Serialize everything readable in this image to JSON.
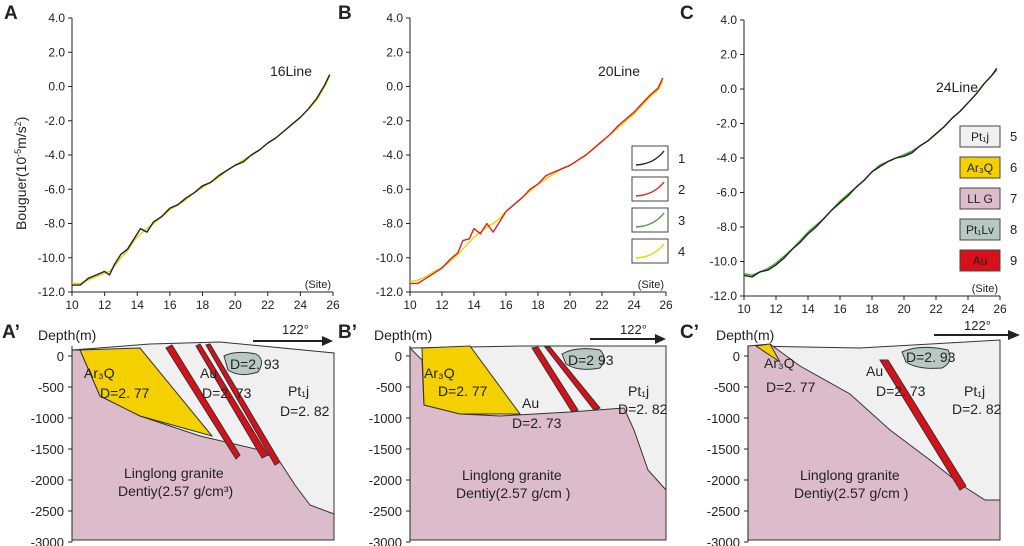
{
  "panels": {
    "A": "A",
    "B": "B",
    "C": "C",
    "A2": "A’",
    "B2": "B’",
    "C2": "C’"
  },
  "ylabel": "Bouguer(10",
  "ylabel_sup1": "-5",
  "ylabel_mid": "m/s",
  "ylabel_sup2": "2",
  "ylabel_end": ")",
  "site_label": "(Site)",
  "depth_label": "Depth(m)",
  "direction": "122°",
  "colors": {
    "black": "#222222",
    "red": "#e0201c",
    "green": "#3aa82a",
    "yellow": "#e8d400",
    "pt1j": "#f0f0f0",
    "ar3q": "#f5d000",
    "llg": "#dcbccb",
    "pt1lv": "#b8c9c4",
    "au": "#d8101a"
  },
  "chart_data": [
    {
      "type": "line",
      "panel": "A",
      "title": "16Line",
      "xlabel": "(Site)",
      "ylabel": "Bouguer(10-5m/s2)",
      "xlim": [
        10,
        26
      ],
      "ylim": [
        -12,
        4
      ],
      "x_ticks": [
        "10",
        "12",
        "14",
        "16",
        "18",
        "20",
        "22",
        "24",
        "26"
      ],
      "y_ticks": [
        "4.0",
        "2.0",
        "0.0",
        "-2.0",
        "-4.0",
        "-6.0",
        "-8.0",
        "-10.0",
        "-12.0"
      ],
      "x": [
        10,
        10.5,
        11,
        11.5,
        12,
        12.3,
        12.6,
        13,
        13.4,
        13.8,
        14.2,
        14.6,
        15,
        15.5,
        16,
        16.5,
        17,
        17.5,
        18,
        18.5,
        19,
        19.5,
        20,
        20.5,
        21,
        21.5,
        22,
        22.5,
        23,
        23.5,
        24,
        24.5,
        25,
        25.5,
        25.8
      ],
      "series": [
        {
          "name": "1",
          "color": "#222222",
          "values": [
            -11.6,
            -11.6,
            -11.2,
            -11.0,
            -10.8,
            -11.0,
            -10.4,
            -9.8,
            -9.5,
            -8.9,
            -8.3,
            -8.5,
            -7.9,
            -7.6,
            -7.1,
            -6.9,
            -6.5,
            -6.2,
            -5.8,
            -5.6,
            -5.2,
            -4.9,
            -4.6,
            -4.4,
            -4.0,
            -3.7,
            -3.3,
            -3.0,
            -2.6,
            -2.2,
            -1.8,
            -1.3,
            -0.7,
            0.1,
            0.7
          ]
        },
        {
          "name": "4",
          "color": "#e8d400",
          "values": [
            -11.5,
            -11.5,
            -11.3,
            -11.1,
            -10.9,
            -10.8,
            -10.5,
            -10.0,
            -9.6,
            -9.0,
            -8.6,
            -8.3,
            -8.0,
            -7.6,
            -7.2,
            -6.9,
            -6.6,
            -6.2,
            -5.9,
            -5.6,
            -5.3,
            -4.9,
            -4.6,
            -4.3,
            -4.0,
            -3.7,
            -3.3,
            -3.0,
            -2.6,
            -2.2,
            -1.8,
            -1.3,
            -0.8,
            0.0,
            0.6
          ]
        }
      ]
    },
    {
      "type": "line",
      "panel": "B",
      "title": "20Line",
      "xlabel": "(Site)",
      "ylabel": "",
      "xlim": [
        10,
        26
      ],
      "ylim": [
        -12,
        4
      ],
      "x_ticks": [
        "10",
        "12",
        "14",
        "16",
        "18",
        "20",
        "22",
        "24",
        "26"
      ],
      "y_ticks": [
        "4.0",
        "2.0",
        "0.0",
        "-2.0",
        "-4.0",
        "-6.0",
        "-8.0",
        "-10.0",
        "-12.0"
      ],
      "x": [
        10,
        10.5,
        11,
        11.5,
        12,
        12.5,
        13,
        13.3,
        13.7,
        14,
        14.4,
        14.8,
        15.2,
        15.6,
        16,
        16.5,
        17,
        17.5,
        18,
        18.5,
        19,
        19.5,
        20,
        20.5,
        21,
        21.5,
        22,
        22.5,
        23,
        23.5,
        24,
        24.5,
        25,
        25.5,
        25.8
      ],
      "series": [
        {
          "name": "2",
          "color": "#e0201c",
          "values": [
            -11.5,
            -11.5,
            -11.2,
            -10.9,
            -10.6,
            -10.1,
            -9.7,
            -9.0,
            -8.9,
            -8.3,
            -8.6,
            -8.0,
            -8.5,
            -7.9,
            -7.3,
            -6.9,
            -6.5,
            -6.0,
            -5.7,
            -5.2,
            -5.0,
            -4.8,
            -4.6,
            -4.3,
            -4.0,
            -3.6,
            -3.2,
            -2.8,
            -2.3,
            -1.9,
            -1.5,
            -1.0,
            -0.5,
            -0.1,
            0.5
          ]
        },
        {
          "name": "4",
          "color": "#e8d400",
          "values": [
            -11.4,
            -11.3,
            -11.1,
            -10.8,
            -10.6,
            -10.2,
            -9.8,
            -9.5,
            -9.1,
            -8.8,
            -8.5,
            -8.2,
            -8.0,
            -7.7,
            -7.3,
            -6.9,
            -6.5,
            -6.1,
            -5.7,
            -5.4,
            -5.1,
            -4.8,
            -4.6,
            -4.3,
            -4.0,
            -3.6,
            -3.2,
            -2.8,
            -2.4,
            -2.0,
            -1.6,
            -1.1,
            -0.6,
            -0.2,
            0.3
          ]
        }
      ],
      "legend": [
        {
          "label": "1",
          "color": "#222222"
        },
        {
          "label": "2",
          "color": "#e0201c"
        },
        {
          "label": "3",
          "color": "#3aa82a"
        },
        {
          "label": "4",
          "color": "#e8d400"
        }
      ]
    },
    {
      "type": "line",
      "panel": "C",
      "title": "24Line",
      "xlabel": "(Site)",
      "ylabel": "",
      "xlim": [
        10,
        26
      ],
      "ylim": [
        -12,
        4
      ],
      "x_ticks": [
        "10",
        "12",
        "14",
        "16",
        "18",
        "20",
        "22",
        "24",
        "26"
      ],
      "y_ticks": [
        "4.0",
        "2.0",
        "0.0",
        "-2.0",
        "-4.0",
        "-6.0",
        "-8.0",
        "-10.0",
        "-12.0"
      ],
      "x": [
        10,
        10.5,
        11,
        11.5,
        12,
        12.5,
        13,
        13.5,
        14,
        14.5,
        15,
        15.5,
        16,
        16.5,
        17,
        17.5,
        18,
        18.5,
        19,
        19.5,
        20,
        20.5,
        21,
        21.5,
        22,
        22.5,
        23,
        23.5,
        24,
        24.5,
        25,
        25.5,
        25.8
      ],
      "series": [
        {
          "name": "1",
          "color": "#222222",
          "values": [
            -10.8,
            -10.9,
            -10.6,
            -10.5,
            -10.2,
            -9.8,
            -9.3,
            -8.9,
            -8.4,
            -8.0,
            -7.5,
            -7.0,
            -6.6,
            -6.2,
            -5.7,
            -5.3,
            -4.8,
            -4.5,
            -4.2,
            -4.0,
            -3.9,
            -3.7,
            -3.3,
            -3.0,
            -2.6,
            -2.2,
            -1.7,
            -1.3,
            -0.8,
            -0.3,
            0.3,
            0.8,
            1.2
          ]
        },
        {
          "name": "3",
          "color": "#3aa82a",
          "values": [
            -10.7,
            -10.8,
            -10.6,
            -10.4,
            -10.1,
            -9.7,
            -9.3,
            -8.8,
            -8.3,
            -7.9,
            -7.5,
            -7.0,
            -6.5,
            -6.1,
            -5.7,
            -5.3,
            -4.8,
            -4.4,
            -4.2,
            -4.0,
            -3.8,
            -3.6,
            -3.3,
            -3.0,
            -2.6,
            -2.2,
            -1.7,
            -1.3,
            -0.8,
            -0.3,
            0.3,
            0.8,
            1.1
          ]
        }
      ],
      "legend": [
        {
          "label": "Pt₁j",
          "id": "5",
          "color": "#f0f0f0"
        },
        {
          "label": "Ar₃Q",
          "id": "6",
          "color": "#f5d000"
        },
        {
          "label": "LL G",
          "id": "7",
          "color": "#dcbccb"
        },
        {
          "label": "Pt₁Lv",
          "id": "8",
          "color": "#b8c9c4"
        },
        {
          "label": "Au",
          "id": "9",
          "color": "#d8101a"
        }
      ]
    }
  ],
  "sections": [
    {
      "panel": "A’",
      "depth_ticks": [
        "0",
        "-500",
        "-1000",
        "-1500",
        "-2000",
        "-2500",
        "-3000"
      ],
      "labels": {
        "ar3q": "Ar₃Q",
        "ar3q_d": "D=2. 77",
        "au": "Au",
        "au_d": "D=2. 73",
        "pt1lv_d": "D=2. 93",
        "pt1j": "Pt₁j",
        "pt1j_d": "D=2. 82",
        "granite": "Linglong granite",
        "density": "Dentiy(2.57 g/cm³)"
      }
    },
    {
      "panel": "B’",
      "depth_ticks": [
        "0",
        "-500",
        "-1000",
        "-1500",
        "-2000",
        "-2500",
        "-3000"
      ],
      "labels": {
        "ar3q": "Ar₃Q",
        "ar3q_d": "D=2. 77",
        "au": "Au",
        "au_d": "D=2. 73",
        "pt1lv_d": "D=2  93",
        "pt1j": "Pt₁j",
        "pt1j_d": "D=2. 82",
        "granite": "Linglong granite",
        "density": "Dentiy(2.57 g/cm )"
      }
    },
    {
      "panel": "C’",
      "depth_ticks": [
        "0",
        "-500",
        "-1000",
        "-1500",
        "-2000",
        "-2500",
        "-3000"
      ],
      "labels": {
        "ar3q": "Ar₃Q",
        "ar3q_d": "D=2. 77",
        "au": "Au",
        "au_d": "D=2. 73",
        "pt1lv_d": "D=2. 93",
        "pt1j": "Pt₁j",
        "pt1j_d": "D=2. 82",
        "granite": "Linglong granite",
        "density": "Dentiy(2.57 g/cm )"
      }
    }
  ]
}
